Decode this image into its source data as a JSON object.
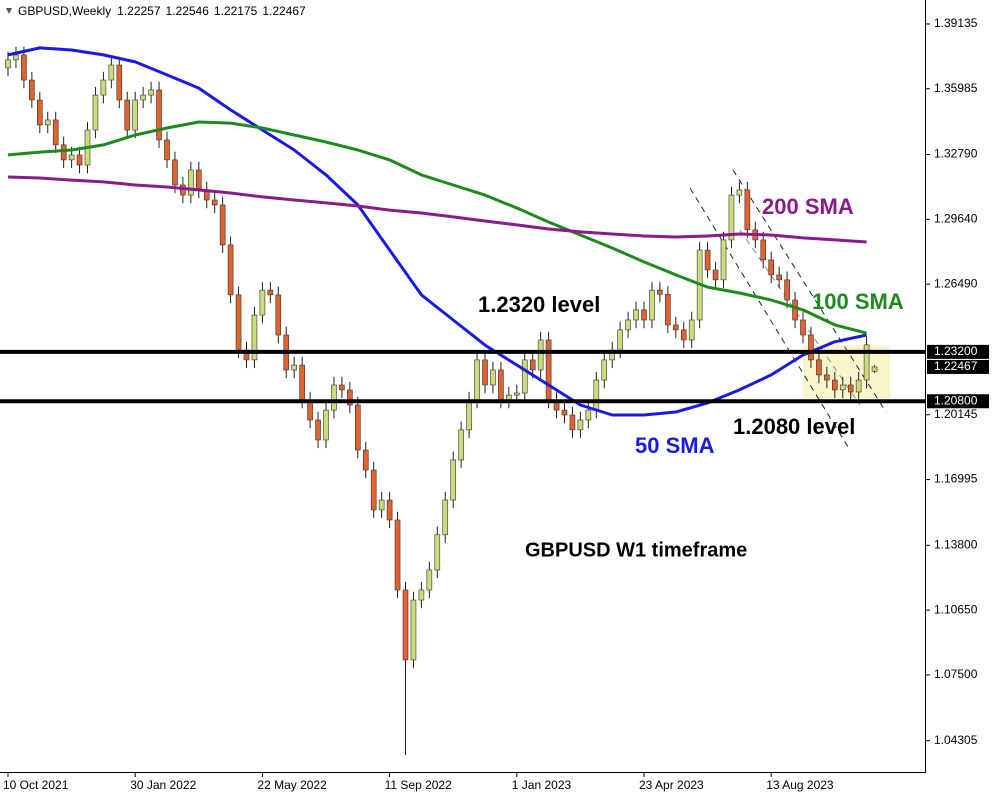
{
  "chart_data": {
    "type": "candlestick",
    "title": "GBPUSD,Weekly",
    "categories": [
      "10 Oct 2021",
      null,
      null,
      null,
      null,
      null,
      null,
      null,
      null,
      null,
      null,
      null,
      null,
      null,
      null,
      null,
      "30 Jan 2022",
      null,
      null,
      null,
      null,
      null,
      null,
      null,
      null,
      null,
      null,
      null,
      null,
      null,
      null,
      null,
      "22 May 2022",
      null,
      null,
      null,
      null,
      null,
      null,
      null,
      null,
      null,
      null,
      null,
      null,
      null,
      null,
      null,
      "11 Sep 2022",
      null,
      null,
      null,
      null,
      null,
      null,
      null,
      null,
      null,
      null,
      null,
      null,
      null,
      null,
      null,
      "1 Jan 2023",
      null,
      null,
      null,
      null,
      null,
      null,
      null,
      null,
      null,
      null,
      null,
      null,
      null,
      null,
      null,
      "23 Apr 2023",
      null,
      null,
      null,
      null,
      null,
      null,
      null,
      null,
      null,
      null,
      null,
      null,
      null,
      null,
      null,
      "13 Aug 2023",
      null,
      null,
      null,
      null,
      null,
      null,
      null,
      null,
      null,
      null,
      null,
      null,
      null
    ],
    "open": [
      1.37,
      1.3739,
      1.3763,
      1.3641,
      1.3544,
      1.3423,
      1.3447,
      1.3326,
      1.3253,
      1.3277,
      1.3228,
      1.3398,
      1.3568,
      1.3641,
      1.3714,
      1.3544,
      1.3398,
      1.3544,
      1.3568,
      1.3593,
      1.335,
      1.3253,
      1.3131,
      1.3082,
      1.3204,
      1.3107,
      1.3058,
      1.3034,
      1.284,
      1.2597,
      1.2329,
      1.2281,
      1.2499,
      1.262,
      1.2597,
      1.2402,
      1.2232,
      1.2256,
      1.2086,
      1.1989,
      1.1892,
      1.2037,
      1.2159,
      1.2135,
      1.2062,
      1.1843,
      1.1746,
      1.1552,
      1.16,
      1.1503,
      1.1163,
      1.0823,
      1.1114,
      1.1163,
      1.126,
      1.1431,
      1.16,
      1.1795,
      1.1941,
      1.2086,
      1.2281,
      1.2159,
      1.2232,
      1.2086,
      1.211,
      1.212,
      1.2281,
      1.2232,
      1.2378,
      1.2086,
      1.2037,
      1.2013,
      1.1941,
      1.1989,
      1.2037,
      1.2183,
      1.2281,
      1.2329,
      1.2427,
      1.2475,
      1.2524,
      1.2475,
      1.262,
      1.26,
      1.2451,
      1.2427,
      1.2378,
      1.2475,
      1.2815,
      1.2718,
      1.267,
      1.2864,
      1.3082,
      1.3107,
      1.2913,
      1.2864,
      1.2767,
      1.2694,
      1.267,
      1.2572,
      1.2475,
      1.2402,
      1.2281,
      1.2208,
      1.2183,
      1.2135,
      1.2159,
      1.2125,
      1.2183,
      1.22257
    ],
    "high": [
      1.3779,
      1.3803,
      1.3803,
      1.3681,
      1.3584,
      1.3487,
      1.3487,
      1.3366,
      1.3317,
      1.3317,
      1.3438,
      1.3608,
      1.3681,
      1.3754,
      1.3754,
      1.3584,
      1.3584,
      1.3608,
      1.3633,
      1.3633,
      1.339,
      1.3293,
      1.3171,
      1.3244,
      1.3244,
      1.3147,
      1.3098,
      1.3074,
      1.288,
      1.2637,
      1.2369,
      1.2539,
      1.266,
      1.266,
      1.2637,
      1.2442,
      1.2296,
      1.2296,
      1.2126,
      1.2029,
      1.2077,
      1.2199,
      1.2199,
      1.2175,
      1.2102,
      1.1883,
      1.1786,
      1.164,
      1.164,
      1.1543,
      1.1203,
      1.1154,
      1.1203,
      1.13,
      1.1471,
      1.164,
      1.1835,
      1.1981,
      1.2126,
      1.2321,
      1.2321,
      1.2272,
      1.2272,
      1.215,
      1.216,
      1.2321,
      1.2321,
      1.2418,
      1.2418,
      1.2126,
      1.2077,
      1.2053,
      1.2029,
      1.2077,
      1.2223,
      1.2321,
      1.2369,
      1.2467,
      1.2515,
      1.2564,
      1.2564,
      1.266,
      1.266,
      1.264,
      1.2491,
      1.2467,
      1.2515,
      1.2855,
      1.2855,
      1.2758,
      1.2904,
      1.3122,
      1.3147,
      1.3147,
      1.2953,
      1.2904,
      1.2807,
      1.2734,
      1.271,
      1.2612,
      1.2515,
      1.2442,
      1.2321,
      1.2248,
      1.2223,
      1.2199,
      1.2199,
      1.2223,
      1.2394,
      1.22546
    ],
    "low": [
      1.366,
      1.3699,
      1.3601,
      1.3504,
      1.3383,
      1.3383,
      1.3286,
      1.3213,
      1.3213,
      1.3188,
      1.3188,
      1.3358,
      1.3528,
      1.3601,
      1.3504,
      1.3358,
      1.3358,
      1.3504,
      1.3528,
      1.331,
      1.3213,
      1.3091,
      1.3042,
      1.3042,
      1.3067,
      1.3018,
      1.2994,
      1.28,
      1.2557,
      1.2289,
      1.2241,
      1.2241,
      1.2459,
      1.2557,
      1.2362,
      1.2192,
      1.2192,
      1.2046,
      1.1949,
      1.1852,
      1.1852,
      1.1997,
      1.2095,
      1.2022,
      1.1803,
      1.1706,
      1.1512,
      1.1512,
      1.1463,
      1.1123,
      1.0361,
      1.0783,
      1.1074,
      1.1123,
      1.122,
      1.1391,
      1.156,
      1.1755,
      1.1901,
      1.2046,
      1.2119,
      1.2119,
      1.2046,
      1.2046,
      1.207,
      1.208,
      1.2192,
      1.2192,
      1.2046,
      1.1997,
      1.1973,
      1.1901,
      1.1901,
      1.1949,
      1.1997,
      1.2143,
      1.2241,
      1.2289,
      1.2387,
      1.2435,
      1.2435,
      1.2435,
      1.256,
      1.2411,
      1.2387,
      1.2338,
      1.2338,
      1.2435,
      1.2678,
      1.263,
      1.263,
      1.2824,
      1.3042,
      1.2873,
      1.2824,
      1.2727,
      1.2654,
      1.263,
      1.2532,
      1.2435,
      1.2362,
      1.2241,
      1.2168,
      1.2143,
      1.2095,
      1.2095,
      1.2085,
      1.2085,
      1.2143,
      1.22175
    ],
    "close": [
      1.3739,
      1.3763,
      1.3641,
      1.3544,
      1.3423,
      1.3447,
      1.3326,
      1.3253,
      1.3277,
      1.3228,
      1.3398,
      1.3568,
      1.3641,
      1.3714,
      1.3544,
      1.3398,
      1.3544,
      1.3568,
      1.3593,
      1.335,
      1.3253,
      1.3131,
      1.3082,
      1.3204,
      1.3107,
      1.3058,
      1.3034,
      1.284,
      1.2597,
      1.2329,
      1.2281,
      1.2499,
      1.262,
      1.2597,
      1.2402,
      1.2232,
      1.2256,
      1.2086,
      1.1989,
      1.1892,
      1.2037,
      1.2159,
      1.2135,
      1.2062,
      1.1843,
      1.1746,
      1.1552,
      1.16,
      1.1503,
      1.1163,
      1.0823,
      1.1114,
      1.1163,
      1.126,
      1.1431,
      1.16,
      1.1795,
      1.1941,
      1.2086,
      1.2281,
      1.2159,
      1.2232,
      1.2086,
      1.211,
      1.212,
      1.2281,
      1.2232,
      1.2378,
      1.2086,
      1.2037,
      1.2013,
      1.1941,
      1.1989,
      1.2037,
      1.2183,
      1.2281,
      1.2329,
      1.2427,
      1.2475,
      1.2524,
      1.2475,
      1.262,
      1.26,
      1.2451,
      1.2427,
      1.2378,
      1.2475,
      1.2815,
      1.2718,
      1.267,
      1.2864,
      1.3082,
      1.3107,
      1.2913,
      1.2864,
      1.2767,
      1.2694,
      1.267,
      1.2572,
      1.2475,
      1.2402,
      1.2281,
      1.2208,
      1.2183,
      1.2135,
      1.2159,
      1.2125,
      1.2183,
      1.2354,
      1.22467
    ],
    "up_color": "#cddc79",
    "down_color": "#e0622e",
    "ylim": [
      1.0288,
      1.403
    ],
    "yticks": [
      1.39135,
      1.35985,
      {
        "value": 1.3279,
        "label": "1.32790"
      },
      {
        "value": 1.2964,
        "label": "1.29640"
      },
      {
        "value": 1.2649,
        "label": "1.26490"
      },
      1.20145,
      1.16995,
      {
        "value": 1.138,
        "label": "1.13800"
      },
      {
        "value": 1.1065,
        "label": "1.10650"
      },
      {
        "value": 1.075,
        "label": "1.07500"
      },
      1.04305
    ],
    "series": [
      {
        "name": "50 SMA",
        "color": "#1a1ae6",
        "x": [
          0,
          4,
          8,
          12,
          16,
          20,
          24,
          28,
          32,
          36,
          40,
          44,
          48,
          52,
          56,
          60,
          64,
          68,
          72,
          76,
          80,
          84,
          88,
          92,
          96,
          100,
          104,
          108
        ],
        "values": [
          1.3763,
          1.3797,
          1.3787,
          1.3763,
          1.3729,
          1.3666,
          1.3602,
          1.3496,
          1.3398,
          1.3301,
          1.318,
          1.3034,
          1.2815,
          1.2597,
          1.2475,
          1.2353,
          1.2256,
          1.2159,
          1.2062,
          1.2013,
          1.2013,
          1.2028,
          1.2072,
          1.2135,
          1.2208,
          1.2305,
          1.2369,
          1.2402
        ]
      },
      {
        "name": "100 SMA",
        "color": "#1e8a1e",
        "x": [
          0,
          4,
          8,
          12,
          16,
          20,
          24,
          28,
          32,
          36,
          40,
          44,
          48,
          52,
          56,
          60,
          64,
          68,
          72,
          76,
          80,
          84,
          88,
          92,
          96,
          100,
          104,
          108
        ],
        "values": [
          1.3277,
          1.3291,
          1.3301,
          1.3326,
          1.3374,
          1.3408,
          1.3437,
          1.3432,
          1.3408,
          1.3374,
          1.334,
          1.3301,
          1.3253,
          1.318,
          1.3131,
          1.3082,
          1.3019,
          1.2951,
          1.2888,
          1.2825,
          1.2757,
          1.2694,
          1.2635,
          1.2606,
          1.2572,
          1.2524,
          1.2451,
          1.2411
        ]
      },
      {
        "name": "200 SMA",
        "color": "#8b1a8b",
        "x": [
          0,
          4,
          8,
          12,
          16,
          20,
          24,
          28,
          32,
          36,
          40,
          44,
          48,
          52,
          56,
          60,
          64,
          68,
          72,
          76,
          80,
          84,
          88,
          92,
          96,
          100,
          104,
          108
        ],
        "values": [
          1.317,
          1.3165,
          1.3155,
          1.3146,
          1.3131,
          1.3121,
          1.3107,
          1.3092,
          1.3073,
          1.3058,
          1.3044,
          1.3029,
          1.3009,
          1.2995,
          1.2976,
          1.2956,
          1.2937,
          1.2917,
          1.2903,
          1.2893,
          1.2883,
          1.2878,
          1.2883,
          1.2893,
          1.2888,
          1.2874,
          1.2864,
          1.2854
        ]
      }
    ],
    "levels": [
      {
        "value": 1.232,
        "label": "1.23200"
      },
      {
        "value": 1.208,
        "label": "1.20800"
      }
    ],
    "annotations": [
      "1.2320 level",
      "1.2080 level",
      "GBPUSD W1 timeframe"
    ]
  }
}
